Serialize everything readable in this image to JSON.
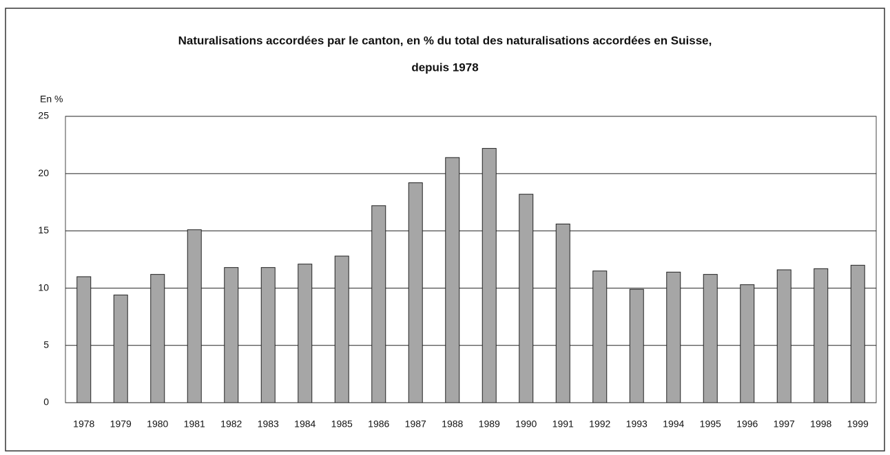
{
  "chart_data": {
    "type": "bar",
    "title": [
      "Naturalisations accordées par le canton, en % du total des naturalisations accordées en Suisse,",
      "depuis 1978"
    ],
    "y_label": "En %",
    "categories": [
      "1978",
      "1979",
      "1980",
      "1981",
      "1982",
      "1983",
      "1984",
      "1985",
      "1986",
      "1987",
      "1988",
      "1989",
      "1990",
      "1991",
      "1992",
      "1993",
      "1994",
      "1995",
      "1996",
      "1997",
      "1998",
      "1999"
    ],
    "values": [
      11.0,
      9.4,
      11.2,
      15.1,
      11.8,
      11.8,
      12.1,
      12.8,
      17.2,
      19.2,
      21.4,
      22.2,
      18.2,
      15.6,
      11.5,
      9.9,
      11.4,
      11.2,
      10.3,
      11.6,
      11.7,
      12.0
    ],
    "color": "#a6a6a6",
    "ylim": [
      0,
      25
    ],
    "yticks": [
      0,
      5,
      10,
      15,
      20,
      25
    ],
    "grid": true
  }
}
